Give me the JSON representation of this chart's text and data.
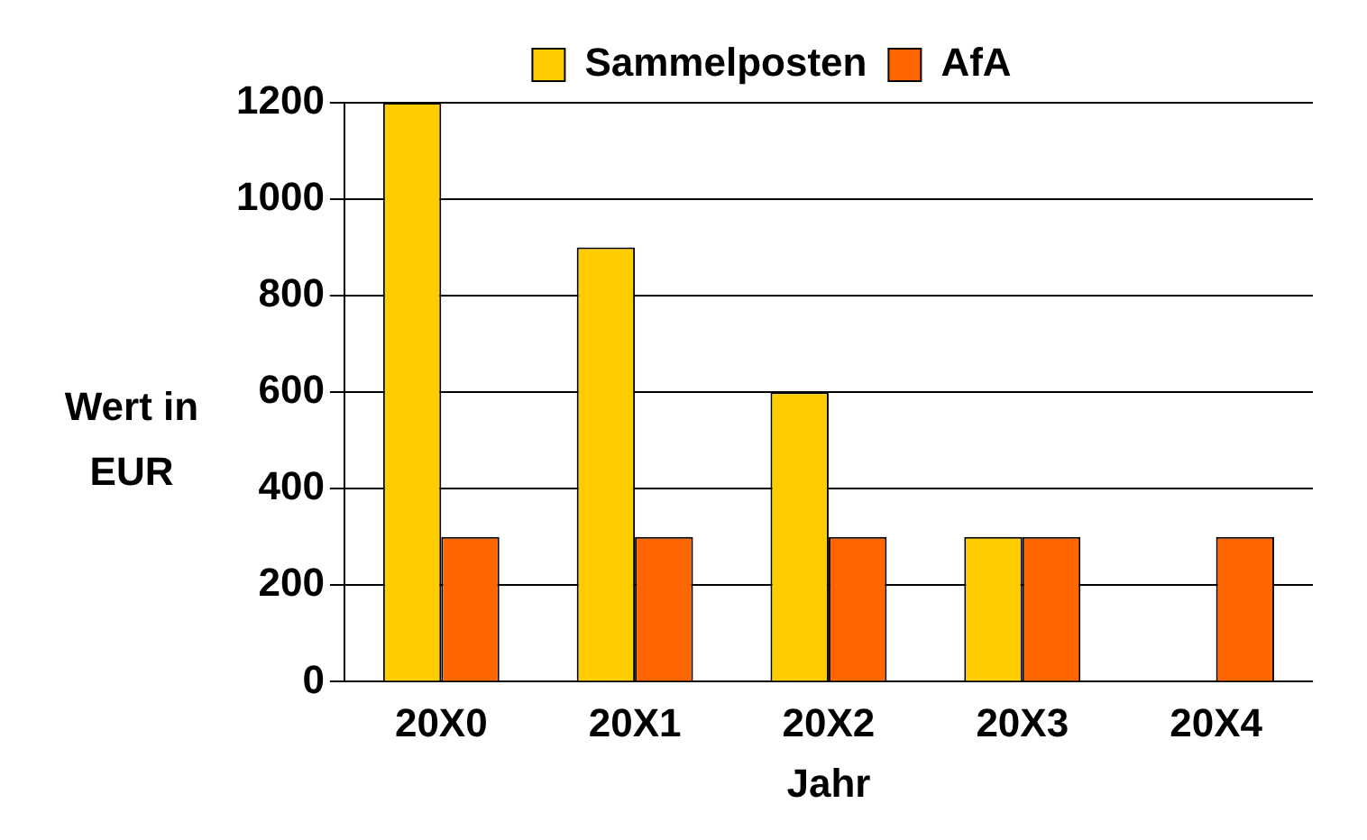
{
  "chart_data": {
    "type": "bar",
    "xlabel": "Jahr",
    "ylabel": "Wert in EUR",
    "categories": [
      "20X0",
      "20X1",
      "20X2",
      "20X3",
      "20X4"
    ],
    "series": [
      {
        "name": "Sammelposten",
        "color": "#ffcc00",
        "values": [
          1200,
          900,
          600,
          300,
          0
        ]
      },
      {
        "name": "AfA",
        "color": "#ff6600",
        "values": [
          300,
          300,
          300,
          300,
          300
        ]
      }
    ],
    "ylim": [
      0,
      1200
    ],
    "yticks": [
      0,
      200,
      400,
      600,
      800,
      1000,
      1200
    ],
    "grid": "y",
    "legend": "top"
  }
}
